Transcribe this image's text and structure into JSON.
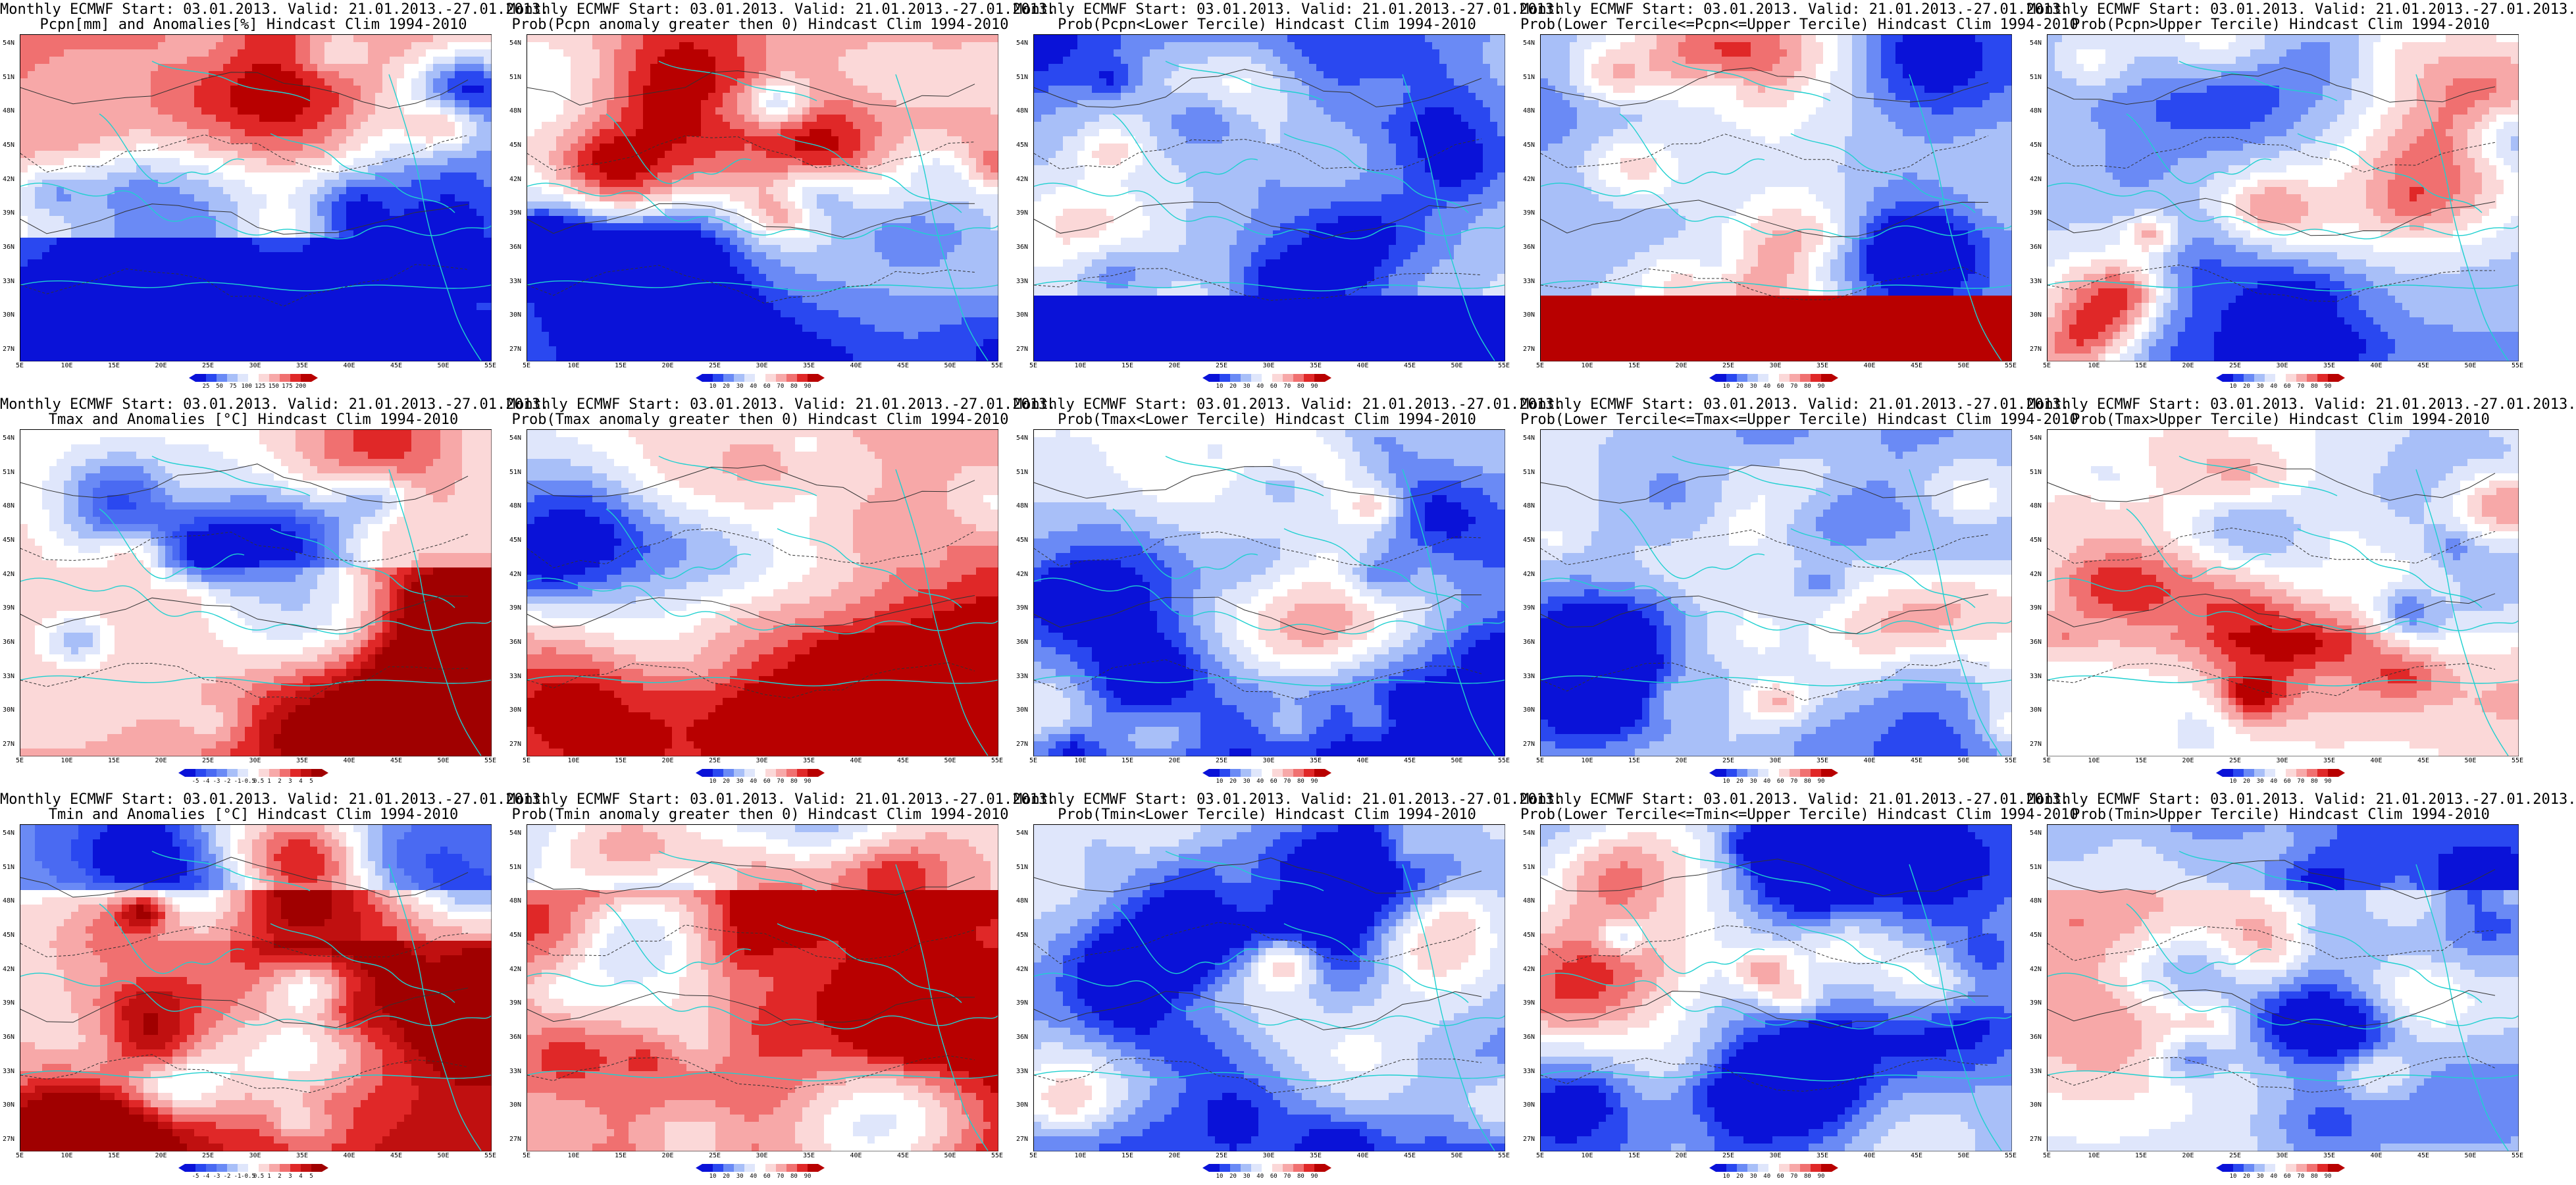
{
  "figure": {
    "panels": [
      {
        "title_line1": "Monthly ECMWF Start: 03.01.2013. Valid: 21.01.2013.-27.01.2013.",
        "title_line2": "Pcpn[mm] and Anomalies[%] Hindcast Clim 1994-2010",
        "field": "pcpn-anomaly",
        "scale": "anomaly-pct"
      },
      {
        "title_line1": "Monthly ECMWF Start: 03.01.2013. Valid: 21.01.2013.-27.01.2013.",
        "title_line2": "Prob(Pcpn anomaly greater then 0) Hindcast Clim 1994-2010",
        "field": "pcpn-prob-pos",
        "scale": "prob"
      },
      {
        "title_line1": "Monthly ECMWF Start: 03.01.2013. Valid: 21.01.2013.-27.01.2013.",
        "title_line2": "Prob(Pcpn<Lower Tercile) Hindcast Clim 1994-2010",
        "field": "pcpn-lower",
        "scale": "prob"
      },
      {
        "title_line1": "Monthly ECMWF Start: 03.01.2013. Valid: 21.01.2013.-27.01.2013.",
        "title_line2": "Prob(Lower Tercile<=Pcpn<=Upper Tercile) Hindcast Clim 1994-2010",
        "field": "pcpn-middle",
        "scale": "prob"
      },
      {
        "title_line1": "Monthly ECMWF Start: 03.01.2013. Valid: 21.01.2013.-27.01.2013.",
        "title_line2": "Prob(Pcpn>Upper Tercile) Hindcast Clim 1994-2010",
        "field": "pcpn-upper",
        "scale": "prob"
      },
      {
        "title_line1": "Monthly ECMWF Start: 03.01.2013. Valid: 21.01.2013.-27.01.2013.",
        "title_line2": "Tmax and Anomalies [°C] Hindcast Clim 1994-2010",
        "field": "tmax-anomaly",
        "scale": "anomaly-c"
      },
      {
        "title_line1": "Monthly ECMWF Start: 03.01.2013. Valid: 21.01.2013.-27.01.2013.",
        "title_line2": "Prob(Tmax anomaly greater then 0) Hindcast Clim 1994-2010",
        "field": "tmax-prob-pos",
        "scale": "prob"
      },
      {
        "title_line1": "Monthly ECMWF Start: 03.01.2013. Valid: 21.01.2013.-27.01.2013.",
        "title_line2": "Prob(Tmax<Lower Tercile) Hindcast Clim 1994-2010",
        "field": "tmax-lower",
        "scale": "prob"
      },
      {
        "title_line1": "Monthly ECMWF Start: 03.01.2013. Valid: 21.01.2013.-27.01.2013.",
        "title_line2": "Prob(Lower Tercile<=Tmax<=Upper Tercile) Hindcast Clim 1994-2010",
        "field": "tmax-middle",
        "scale": "prob"
      },
      {
        "title_line1": "Monthly ECMWF Start: 03.01.2013. Valid: 21.01.2013.-27.01.2013.",
        "title_line2": "Prob(Tmax>Upper Tercile) Hindcast Clim 1994-2010",
        "field": "tmax-upper",
        "scale": "prob"
      },
      {
        "title_line1": "Monthly ECMWF Start: 03.01.2013. Valid: 21.01.2013.-27.01.2013.",
        "title_line2": "Tmin and Anomalies [°C] Hindcast Clim 1994-2010",
        "field": "tmin-anomaly",
        "scale": "anomaly-c"
      },
      {
        "title_line1": "Monthly ECMWF Start: 03.01.2013. Valid: 21.01.2013.-27.01.2013.",
        "title_line2": "Prob(Tmin anomaly greater then 0) Hindcast Clim 1994-2010",
        "field": "tmin-prob-pos",
        "scale": "prob"
      },
      {
        "title_line1": "Monthly ECMWF Start: 03.01.2013. Valid: 21.01.2013.-27.01.2013.",
        "title_line2": "Prob(Tmin<Lower Tercile) Hindcast Clim 1994-2010",
        "field": "tmin-lower",
        "scale": "prob"
      },
      {
        "title_line1": "Monthly ECMWF Start: 03.01.2013. Valid: 21.01.2013.-27.01.2013.",
        "title_line2": "Prob(Lower Tercile<=Tmin<=Upper Tercile) Hindcast Clim 1994-2010",
        "field": "tmin-middle",
        "scale": "prob"
      },
      {
        "title_line1": "Monthly ECMWF Start: 03.01.2013. Valid: 21.01.2013.-27.01.2013.",
        "title_line2": "Prob(Tmin>Upper Tercile) Hindcast Clim 1994-2010",
        "field": "tmin-upper",
        "scale": "prob"
      }
    ],
    "lat_labels": [
      "54N",
      "51N",
      "48N",
      "45N",
      "42N",
      "39N",
      "36N",
      "33N",
      "30N",
      "27N"
    ],
    "lon_labels": [
      "5E",
      "10E",
      "15E",
      "20E",
      "25E",
      "30E",
      "35E",
      "40E",
      "45E",
      "50E",
      "55E"
    ],
    "scales": {
      "prob": {
        "ticks": [
          "10",
          "20",
          "30",
          "40",
          "60",
          "70",
          "80",
          "90"
        ],
        "colors": [
          "#0a12d8",
          "#2a48f0",
          "#6a8af5",
          "#a8bff8",
          "#dfe6fb",
          "#ffffff",
          "#fbd8d8",
          "#f7a8a8",
          "#f07070",
          "#e02828",
          "#b80000"
        ]
      },
      "anomaly-pct": {
        "ticks": [
          "25",
          "50",
          "75",
          "100",
          "125",
          "150",
          "175",
          "200"
        ],
        "colors": [
          "#0a12d8",
          "#2a48f0",
          "#6a8af5",
          "#a8bff8",
          "#dfe6fb",
          "#ffffff",
          "#fbd8d8",
          "#f7a8a8",
          "#f07070",
          "#e02828",
          "#b80000"
        ]
      },
      "anomaly-c": {
        "ticks": [
          "-5",
          "-4",
          "-3",
          "-2",
          "-1",
          "-0.5",
          "0.5",
          "1",
          "2",
          "3",
          "4",
          "5"
        ],
        "colors": [
          "#0a12d8",
          "#2a48f0",
          "#4a6af2",
          "#6a8af5",
          "#a8bff8",
          "#dfe6fb",
          "#ffffff",
          "#fbd8d8",
          "#f7a8a8",
          "#f07070",
          "#e02828",
          "#c01010",
          "#a00000"
        ]
      }
    }
  }
}
